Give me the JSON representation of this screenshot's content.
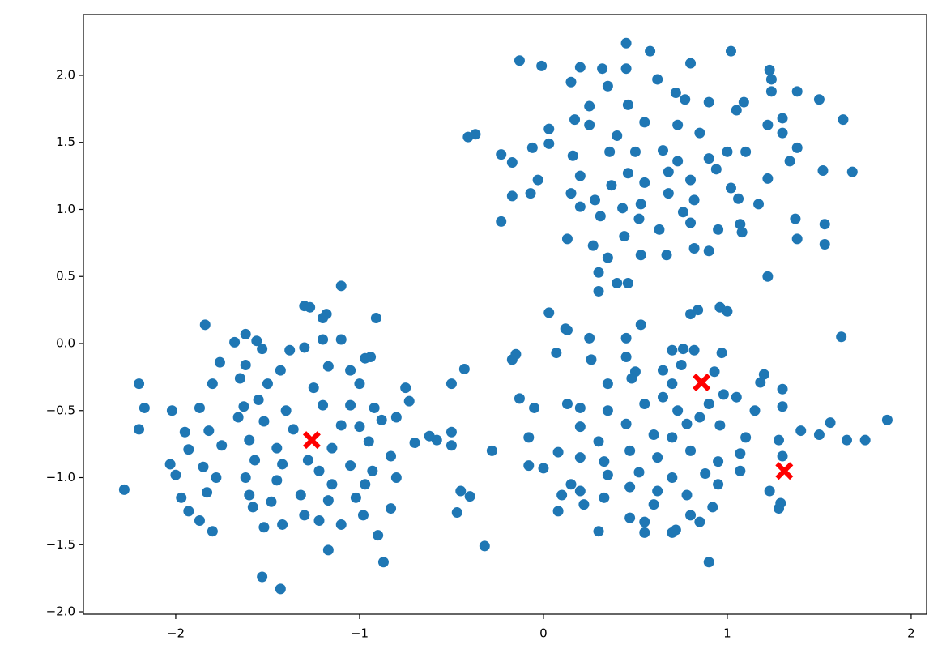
{
  "chart_data": {
    "type": "scatter",
    "xlim": [
      -2.502,
      2.084
    ],
    "ylim": [
      -2.018,
      2.453
    ],
    "xticks": [
      {
        "value": -2,
        "label": "−2"
      },
      {
        "value": -1,
        "label": "−1"
      },
      0,
      1,
      2
    ],
    "yticks": [
      {
        "value": -2,
        "label": "−2.0"
      },
      {
        "value": -1.5,
        "label": "−1.5"
      },
      {
        "value": -1,
        "label": "−1.0"
      },
      {
        "value": -0.5,
        "label": "−0.5"
      },
      {
        "value": 0,
        "label": "0.0"
      },
      {
        "value": 0.5,
        "label": "0.5"
      },
      {
        "value": 1,
        "label": "1.0"
      },
      {
        "value": 1.5,
        "label": "1.5"
      },
      {
        "value": 2,
        "label": "2.0"
      }
    ],
    "series": [
      {
        "color": "#1f77b4",
        "marker": "o",
        "x": [
          0.45,
          1.02,
          0.58,
          -0.13,
          -0.01,
          0.2,
          0.32,
          0.45,
          0.8,
          1.23,
          0.15,
          0.35,
          0.62,
          1.24,
          1.24,
          0.72,
          1.38,
          1.5,
          1.09,
          0.9,
          0.25,
          0.46,
          0.77,
          1.05,
          -0.41,
          -0.37,
          0.17,
          0.03,
          1.3,
          1.63,
          0.55,
          0.73,
          0.25,
          0.4,
          0.85,
          1.22,
          1.3,
          -0.23,
          -0.17,
          -0.06,
          0.03,
          0.16,
          0.36,
          0.5,
          0.65,
          0.73,
          0.9,
          1.0,
          1.1,
          1.38,
          1.34,
          1.68,
          1.52,
          -0.03,
          0.15,
          0.2,
          0.37,
          0.46,
          0.55,
          0.68,
          0.8,
          0.94,
          1.02,
          1.22,
          -0.17,
          -0.07,
          0.28,
          0.43,
          0.53,
          0.68,
          0.82,
          1.06,
          1.17,
          -0.23,
          0.2,
          0.31,
          0.52,
          0.76,
          0.8,
          1.07,
          1.37,
          1.53,
          0.13,
          0.27,
          0.44,
          0.63,
          0.95,
          1.08,
          1.38,
          1.53,
          0.3,
          0.53,
          0.67,
          0.82,
          0.9,
          1.22,
          0.4,
          0.46,
          0.3,
          0.35,
          -1.1,
          -1.3,
          -1.27,
          -1.18,
          -0.91,
          -1.2,
          -1.84,
          -1.62,
          -1.56,
          -1.68,
          -1.2,
          -1.1,
          -1.3,
          -1.38,
          -0.94,
          -0.97,
          -1.53,
          -1.76,
          -1.62,
          -1.43,
          -1.17,
          -1.05,
          -2.2,
          -1.8,
          -1.65,
          -1.5,
          -1.25,
          -1.0,
          -0.75,
          -2.17,
          -2.02,
          -1.87,
          -1.63,
          -1.55,
          -1.4,
          -1.2,
          -1.05,
          -0.92,
          -0.73,
          -2.2,
          -1.95,
          -1.82,
          -1.66,
          -1.52,
          -1.36,
          -1.1,
          -1.0,
          -0.88,
          -0.8,
          -0.62,
          -0.5,
          -1.93,
          -1.75,
          -1.6,
          -1.45,
          -1.15,
          -0.95,
          -0.83,
          -0.7,
          -0.58,
          -0.5,
          -2.03,
          -1.85,
          -1.57,
          -1.42,
          -1.28,
          -1.05,
          -0.93,
          -2.28,
          -2.0,
          -1.78,
          -1.62,
          -1.45,
          -1.22,
          -1.15,
          -0.97,
          -0.8,
          -0.45,
          -0.4,
          -1.97,
          -1.83,
          -1.6,
          -1.48,
          -1.32,
          -1.17,
          -1.02,
          -0.83,
          -1.93,
          -1.87,
          -1.8,
          -1.58,
          -1.42,
          -1.3,
          -1.22,
          -1.1,
          -0.98,
          -0.47,
          -1.52,
          -1.17,
          -0.9,
          -0.87,
          -1.53,
          -1.43,
          -0.32,
          -0.28,
          -0.5,
          -0.43,
          0.03,
          0.13,
          0.12,
          0.25,
          0.45,
          0.53,
          0.8,
          0.84,
          0.96,
          1.0,
          1.62,
          0.07,
          0.26,
          -0.17,
          -0.15,
          0.45,
          0.7,
          0.76,
          0.82,
          0.97,
          0.5,
          0.65,
          0.75,
          0.93,
          1.2,
          0.35,
          0.48,
          0.7,
          0.98,
          1.18,
          1.3,
          -0.13,
          -0.05,
          0.13,
          0.2,
          0.35,
          0.55,
          0.73,
          0.9,
          1.05,
          1.15,
          1.3,
          1.56,
          -0.08,
          0.08,
          0.2,
          0.3,
          0.45,
          0.6,
          0.78,
          0.96,
          1.1,
          1.28,
          1.4,
          1.5,
          1.65,
          1.75,
          1.87,
          -0.08,
          0.0,
          0.2,
          0.33,
          0.47,
          0.62,
          0.8,
          0.95,
          1.07,
          1.3,
          0.1,
          0.2,
          0.35,
          0.52,
          0.7,
          0.88,
          1.07,
          0.08,
          0.22,
          0.33,
          0.47,
          0.62,
          0.78,
          0.95,
          1.23,
          1.28,
          1.29,
          0.3,
          0.47,
          0.55,
          0.55,
          0.7,
          0.72,
          0.8,
          0.85,
          0.9,
          0.92,
          0.6,
          0.15,
          0.7,
          0.85,
          0.65
        ],
        "values": [
          2.24,
          2.18,
          2.18,
          2.11,
          2.07,
          2.06,
          2.05,
          2.05,
          2.09,
          2.04,
          1.95,
          1.92,
          1.97,
          1.97,
          1.88,
          1.87,
          1.88,
          1.82,
          1.8,
          1.8,
          1.77,
          1.78,
          1.82,
          1.74,
          1.54,
          1.56,
          1.67,
          1.6,
          1.68,
          1.67,
          1.65,
          1.63,
          1.63,
          1.55,
          1.57,
          1.63,
          1.57,
          1.41,
          1.35,
          1.46,
          1.49,
          1.4,
          1.43,
          1.43,
          1.44,
          1.36,
          1.38,
          1.43,
          1.43,
          1.46,
          1.36,
          1.28,
          1.29,
          1.22,
          1.12,
          1.25,
          1.18,
          1.27,
          1.2,
          1.28,
          1.22,
          1.3,
          1.16,
          1.23,
          1.1,
          1.12,
          1.07,
          1.01,
          1.04,
          1.12,
          1.07,
          1.08,
          1.04,
          0.91,
          1.02,
          0.95,
          0.93,
          0.98,
          0.9,
          0.89,
          0.93,
          0.89,
          0.78,
          0.73,
          0.8,
          0.85,
          0.85,
          0.83,
          0.78,
          0.74,
          0.53,
          0.66,
          0.66,
          0.71,
          0.69,
          0.5,
          0.45,
          0.45,
          0.39,
          0.64,
          0.43,
          0.28,
          0.27,
          0.22,
          0.19,
          0.19,
          0.14,
          0.07,
          0.02,
          0.01,
          0.03,
          0.03,
          -0.03,
          -0.05,
          -0.1,
          -0.11,
          -0.04,
          -0.14,
          -0.16,
          -0.2,
          -0.17,
          -0.2,
          -0.3,
          -0.3,
          -0.26,
          -0.3,
          -0.33,
          -0.3,
          -0.33,
          -0.48,
          -0.5,
          -0.48,
          -0.47,
          -0.42,
          -0.5,
          -0.46,
          -0.46,
          -0.48,
          -0.43,
          -0.64,
          -0.66,
          -0.65,
          -0.55,
          -0.58,
          -0.64,
          -0.61,
          -0.62,
          -0.57,
          -0.55,
          -0.69,
          -0.66,
          -0.79,
          -0.76,
          -0.72,
          -0.78,
          -0.78,
          -0.73,
          -0.84,
          -0.74,
          -0.72,
          -0.76,
          -0.9,
          -0.92,
          -0.87,
          -0.9,
          -0.87,
          -0.91,
          -0.95,
          -1.09,
          -0.98,
          -1.0,
          -1.0,
          -1.02,
          -0.95,
          -1.05,
          -1.05,
          -1.0,
          -1.1,
          -1.14,
          -1.15,
          -1.11,
          -1.13,
          -1.18,
          -1.13,
          -1.17,
          -1.15,
          -1.23,
          -1.25,
          -1.32,
          -1.4,
          -1.22,
          -1.35,
          -1.28,
          -1.32,
          -1.35,
          -1.28,
          -1.26,
          -1.37,
          -1.54,
          -1.43,
          -1.63,
          -1.74,
          -1.83,
          -1.51,
          -0.8,
          -0.3,
          -0.19,
          0.23,
          0.1,
          0.11,
          0.04,
          0.04,
          0.14,
          0.22,
          0.25,
          0.27,
          0.24,
          0.05,
          -0.07,
          -0.12,
          -0.12,
          -0.08,
          -0.1,
          -0.05,
          -0.04,
          -0.05,
          -0.07,
          -0.21,
          -0.2,
          -0.16,
          -0.21,
          -0.23,
          -0.3,
          -0.26,
          -0.3,
          -0.38,
          -0.29,
          -0.34,
          -0.41,
          -0.48,
          -0.45,
          -0.48,
          -0.5,
          -0.45,
          -0.5,
          -0.45,
          -0.4,
          -0.5,
          -0.47,
          -0.59,
          -0.7,
          -0.81,
          -0.62,
          -0.73,
          -0.6,
          -0.68,
          -0.6,
          -0.61,
          -0.7,
          -0.72,
          -0.65,
          -0.68,
          -0.72,
          -0.72,
          -0.57,
          -0.91,
          -0.93,
          -0.85,
          -0.88,
          -0.8,
          -0.85,
          -0.8,
          -0.88,
          -0.82,
          -0.84,
          -1.13,
          -1.1,
          -0.98,
          -0.96,
          -1.0,
          -0.97,
          -0.95,
          -1.25,
          -1.2,
          -1.15,
          -1.07,
          -1.1,
          -1.13,
          -1.05,
          -1.1,
          -1.23,
          -1.19,
          -1.4,
          -1.3,
          -1.33,
          -1.41,
          -1.41,
          -1.39,
          -1.28,
          -1.33,
          -1.63,
          -1.22,
          -1.2,
          -1.05,
          -0.7,
          -0.55,
          -0.4
        ]
      },
      {
        "color": "#ff0000",
        "marker": "X",
        "x": [
          -1.26,
          0.86,
          1.31
        ],
        "values": [
          -0.72,
          -0.29,
          -0.95
        ]
      }
    ]
  }
}
